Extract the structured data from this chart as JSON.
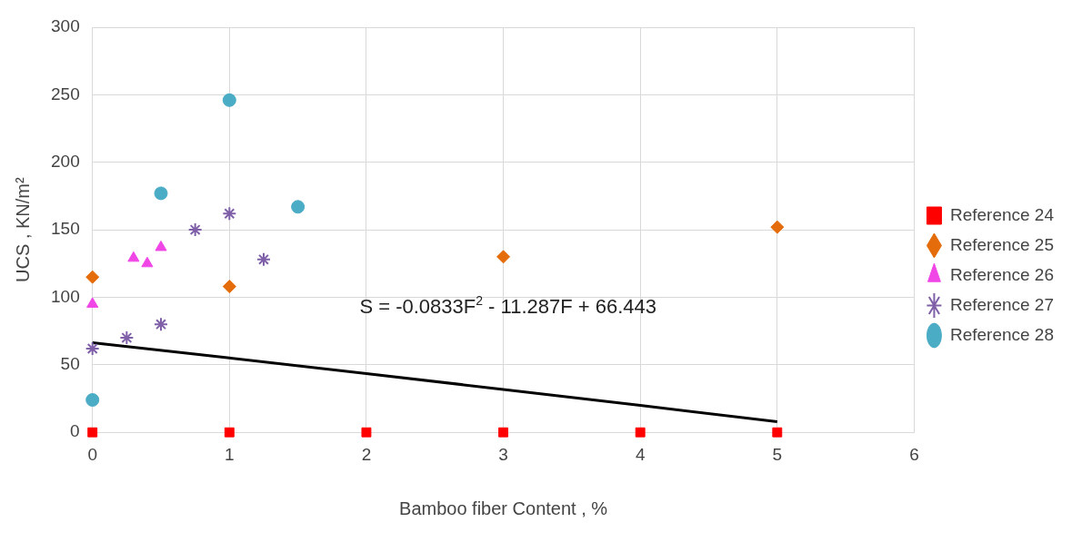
{
  "chart_data": {
    "type": "scatter",
    "xlabel": "Bamboo fiber Content , %",
    "ylabel": "UCS , KN/m²",
    "xlim": [
      0,
      6
    ],
    "xticks": [
      0,
      1,
      2,
      3,
      4,
      5,
      6
    ],
    "ylim": [
      0,
      300
    ],
    "yticks": [
      0,
      50,
      100,
      150,
      200,
      250,
      300
    ],
    "grid": true,
    "legend": "right",
    "annotations": [
      "S = -0.0833F$^{2}$ - 11.287F + 66.443"
    ],
    "series": [
      {
        "name": "Reference 24",
        "color": "#ff0000",
        "marker": "square",
        "x": [
          0,
          1,
          2,
          3,
          4,
          5
        ],
        "values": [
          0,
          0,
          0,
          0,
          0,
          0
        ]
      },
      {
        "name": "Reference 25",
        "color": "#e46c0a",
        "marker": "diamond",
        "x": [
          0,
          1,
          3,
          5
        ],
        "values": [
          115,
          108,
          130,
          152
        ]
      },
      {
        "name": "Reference 26",
        "color": "#f046e6",
        "marker": "triangle",
        "x": [
          0,
          0.3,
          0.4,
          0.5
        ],
        "values": [
          95,
          129,
          125,
          137
        ]
      },
      {
        "name": "Reference 27",
        "color": "#7f60a8",
        "marker": "cross",
        "x": [
          0,
          0.25,
          0.5,
          0.75,
          1,
          1.25
        ],
        "values": [
          62,
          70,
          80,
          150,
          162,
          128
        ]
      },
      {
        "name": "Reference 28",
        "color": "#4bacc6",
        "marker": "circle",
        "x": [
          0,
          0.5,
          1,
          1.5
        ],
        "values": [
          24,
          177,
          246,
          167
        ]
      },
      {
        "type": "line",
        "color": "#000000",
        "marker": "none",
        "x": [
          0,
          1,
          2,
          3,
          4,
          5
        ],
        "values": [
          66.4,
          55.1,
          43.5,
          31.8,
          19.9,
          7.9
        ]
      }
    ]
  }
}
